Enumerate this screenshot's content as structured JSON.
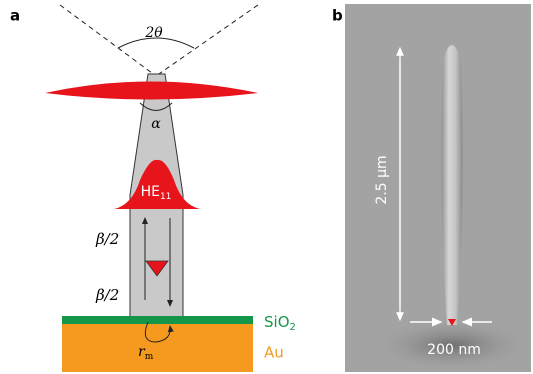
{
  "panels": {
    "a": {
      "label": "a",
      "angle_label": "2θ",
      "alpha_label": "α",
      "mode_label": {
        "text": "HE",
        "sub": "11"
      },
      "beta_top": "β/2",
      "beta_bottom": "β/2",
      "oxide_label": {
        "text": "SiO",
        "sub": "2"
      },
      "metal_label": "Au",
      "radius_label": {
        "text": "r",
        "sub": "m"
      }
    },
    "b": {
      "label": "b",
      "length_label": "2.5 μm",
      "width_label": "200 nm"
    }
  }
}
